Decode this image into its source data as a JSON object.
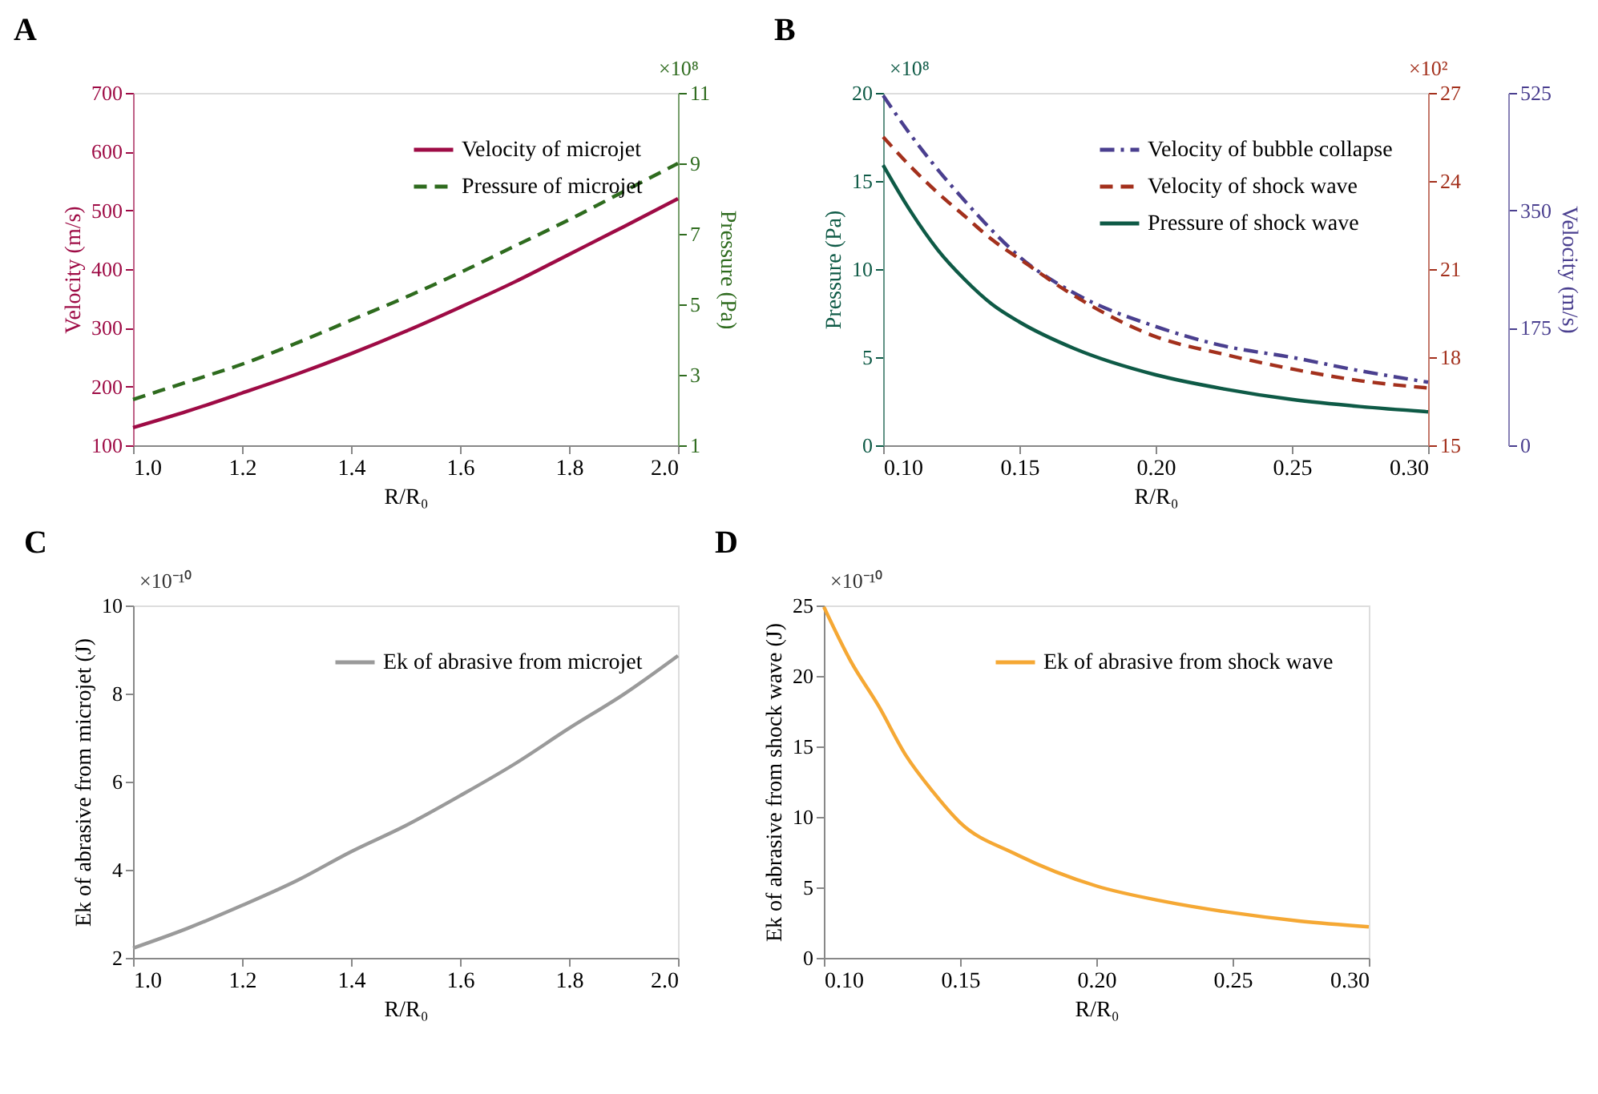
{
  "chart_data": [
    {
      "type": "line",
      "title": "A",
      "xlabel": "R/R₀",
      "ylabel": "Velocity (m/s)",
      "y2label": "Pressure (Pa)",
      "x": [
        1.0,
        1.1,
        1.2,
        1.3,
        1.4,
        1.5,
        1.6,
        1.7,
        1.8,
        1.9,
        2.0
      ],
      "series": [
        {
          "name": "Velocity of microjet",
          "color": "#9e0b45",
          "line_style": "solid",
          "values": [
            130,
            158,
            189,
            221,
            256,
            294,
            335,
            378,
            425,
            472,
            520
          ]
        },
        {
          "name": "Pressure of microjet",
          "color": "#2e6b1e",
          "line_style": "dashed",
          "axis": "y2",
          "values": [
            2.3,
            2.8,
            3.3,
            3.9,
            4.55,
            5.2,
            5.9,
            6.65,
            7.4,
            8.2,
            9.0
          ]
        }
      ],
      "xlim": [
        1.0,
        2.0
      ],
      "xticks": [
        {
          "value": 1,
          "label": "1.0"
        },
        1.2,
        1.4,
        1.6,
        1.8,
        {
          "value": 2,
          "label": "2.0"
        }
      ],
      "ylim": [
        100,
        700
      ],
      "yticks": [
        100,
        200,
        300,
        400,
        500,
        600,
        700
      ],
      "y2lim": [
        1,
        11
      ],
      "y2ticks": [
        1,
        3,
        5,
        7,
        9,
        11
      ],
      "annotations": [
        "×10⁸"
      ],
      "legend": "top right",
      "grid": false
    },
    {
      "type": "line",
      "title": "B",
      "xlabel": "R/R₀",
      "ylabel": "Pressure (Pa)",
      "y3label": "Velocity (m/s)",
      "x": [
        0.1,
        0.11,
        0.12,
        0.13,
        0.14,
        0.15,
        0.17,
        0.2,
        0.225,
        0.25,
        0.275,
        0.3
      ],
      "series": [
        {
          "name": "Velocity of bubble collapse",
          "color": "#4a3f8f",
          "line_style": "dashdot",
          "axis": "y3",
          "values": [
            521,
            463,
            411,
            364,
            320,
            281,
            227,
            177,
            148,
            131,
            111,
            94
          ]
        },
        {
          "name": "Velocity of shock wave",
          "color": "#a3301c",
          "line_style": "dashed",
          "axis": "y2",
          "values": [
            25.5,
            24.5,
            23.6,
            22.8,
            22.0,
            21.35,
            20.1,
            18.7,
            18.1,
            17.6,
            17.2,
            16.95
          ]
        },
        {
          "name": "Pressure of shock wave",
          "color": "#0e5a46",
          "line_style": "solid",
          "values": [
            15.9,
            13.3,
            11.1,
            9.4,
            8.0,
            7.0,
            5.5,
            4.0,
            3.2,
            2.6,
            2.2,
            1.9
          ]
        }
      ],
      "xlim": [
        0.1,
        0.3
      ],
      "xticks": [
        {
          "value": 0.1,
          "label": "0.10"
        },
        0.15,
        {
          "value": 0.2,
          "label": "0.20"
        },
        0.25,
        {
          "value": 0.3,
          "label": "0.30"
        }
      ],
      "ylim": [
        0,
        20
      ],
      "yticks": [
        0,
        5,
        10,
        15,
        20
      ],
      "y2lim": [
        15,
        27
      ],
      "y2ticks": [
        15,
        18,
        21,
        24,
        27
      ],
      "y3lim": [
        0,
        525
      ],
      "y3ticks": [
        0,
        175,
        350,
        525
      ],
      "annotations": [
        "×10⁸",
        "×10²"
      ],
      "legend": "top right",
      "grid": false
    },
    {
      "type": "line",
      "title": "C",
      "xlabel": "R/R₀",
      "ylabel": "Ek of abrasive from microjet (J)",
      "x": [
        1.0,
        1.1,
        1.2,
        1.3,
        1.4,
        1.5,
        1.6,
        1.7,
        1.8,
        1.9,
        2.0
      ],
      "series": [
        {
          "name": "Ek of abrasive from microjet",
          "color": "#9a9a9a",
          "line_style": "solid",
          "values": [
            2.22,
            2.67,
            3.19,
            3.75,
            4.41,
            5.0,
            5.68,
            6.4,
            7.21,
            7.98,
            8.86
          ]
        }
      ],
      "xlim": [
        1.0,
        2.0
      ],
      "xticks": [
        {
          "value": 1,
          "label": "1.0"
        },
        1.2,
        1.4,
        1.6,
        1.8,
        {
          "value": 2,
          "label": "2.0"
        }
      ],
      "ylim": [
        2,
        10
      ],
      "yticks": [
        2,
        4,
        6,
        8,
        10
      ],
      "annotations": [
        "×10⁻¹⁰"
      ],
      "legend": "top right",
      "grid": false
    },
    {
      "type": "line",
      "title": "D",
      "xlabel": "R/R₀",
      "ylabel": "Ek of abrasive from shock wave (J)",
      "x": [
        0.1,
        0.11,
        0.12,
        0.13,
        0.14,
        0.15,
        0.17,
        0.2,
        0.225,
        0.25,
        0.275,
        0.3
      ],
      "series": [
        {
          "name": "Ek of abrasive from shock wave",
          "color": "#f5a834",
          "line_style": "solid",
          "values": [
            24.9,
            21.0,
            17.9,
            14.4,
            11.8,
            9.6,
            7.4,
            5.1,
            4.0,
            3.2,
            2.6,
            2.2
          ]
        }
      ],
      "xlim": [
        0.1,
        0.3
      ],
      "xticks": [
        {
          "value": 0.1,
          "label": "0.10"
        },
        0.15,
        {
          "value": 0.2,
          "label": "0.20"
        },
        0.25,
        {
          "value": 0.3,
          "label": "0.30"
        }
      ],
      "ylim": [
        0,
        25
      ],
      "yticks": [
        0,
        5,
        10,
        15,
        20,
        25
      ],
      "annotations": [
        "×10⁻¹⁰"
      ],
      "legend": "top right",
      "grid": false
    }
  ]
}
